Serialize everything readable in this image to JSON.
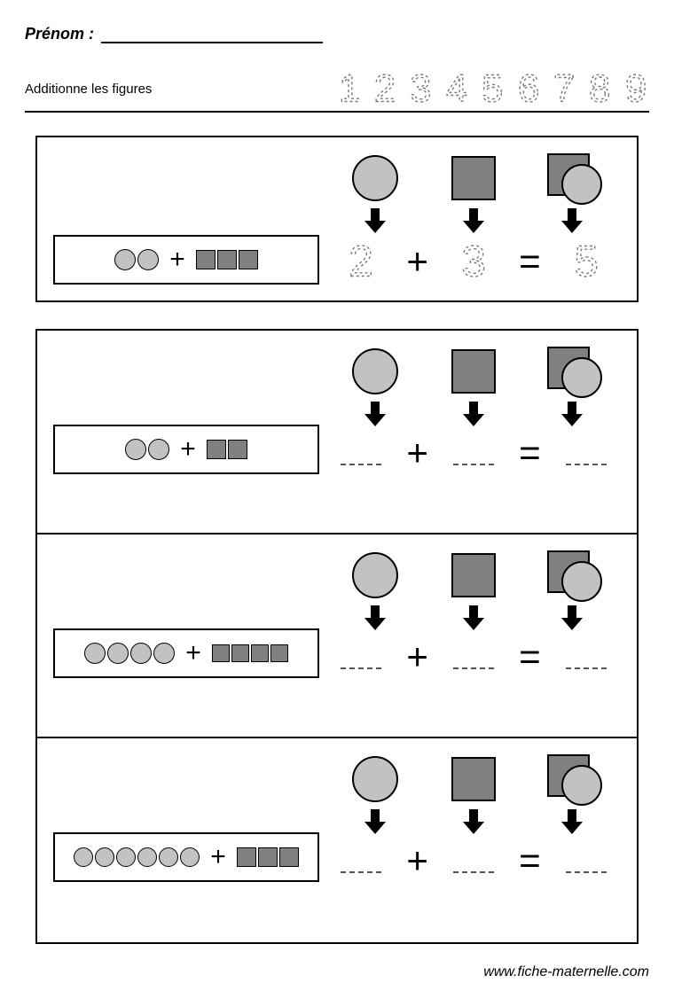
{
  "name_label": "Prénom :",
  "instruction": "Additionne les figures",
  "trace_digits": [
    "1",
    "2",
    "3",
    "4",
    "5",
    "6",
    "7",
    "8",
    "9"
  ],
  "trace_style": {
    "font_size": 46,
    "stroke": "#7a7a7a",
    "dash": "3,3",
    "stroke_width": 1.4
  },
  "colors": {
    "circle_fill": "#c2c2c2",
    "square_fill": "#808080",
    "border": "#000000",
    "background": "#ffffff",
    "arrow": "#000000",
    "dash_gray": "#7a7a7a"
  },
  "example": {
    "circles": 2,
    "squares": 3,
    "equation": {
      "a": "2",
      "op": "+",
      "b": "3",
      "eq": "=",
      "c": "5"
    }
  },
  "problems": [
    {
      "circles": 2,
      "squares": 2,
      "a": "",
      "b": "",
      "c": ""
    },
    {
      "circles": 4,
      "squares": 4,
      "a": "",
      "b": "",
      "c": ""
    },
    {
      "circles": 6,
      "squares": 3,
      "a": "",
      "b": "",
      "c": ""
    }
  ],
  "legend": [
    {
      "type": "circle"
    },
    {
      "type": "square"
    },
    {
      "type": "combo"
    }
  ],
  "footer": "www.fiche-maternelle.com"
}
